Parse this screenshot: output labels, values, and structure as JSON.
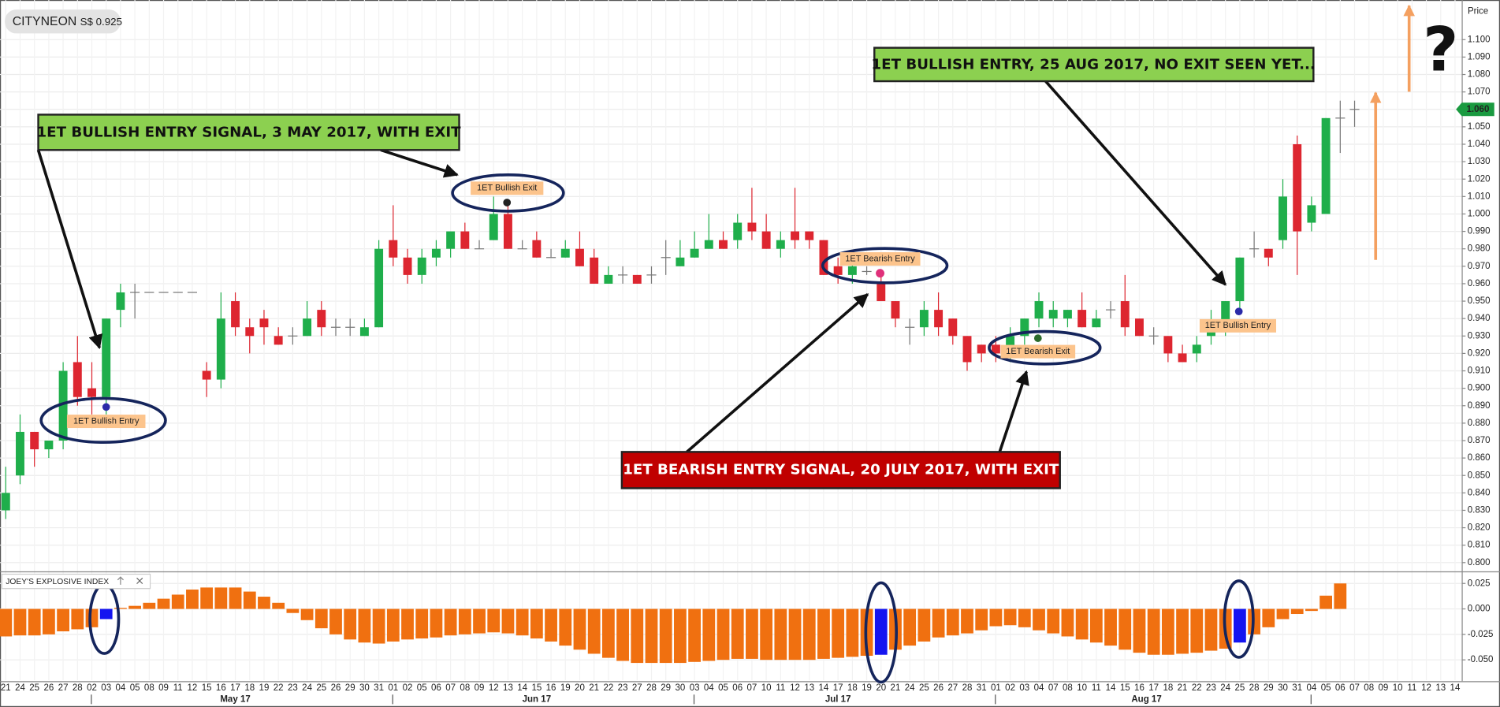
{
  "chart_data": [
    {
      "type": "candlestick",
      "title": "CITYNEON",
      "subtitle": "S$ 0.925",
      "y_axis_label": "Price",
      "price_marker": {
        "value": 1.06,
        "label": "1.060"
      },
      "up_color": "#1fae4b",
      "down_color": "#dd2630",
      "grid": true,
      "x": [
        "21",
        "24",
        "25",
        "26",
        "27",
        "28",
        "02",
        "03",
        "04",
        "05",
        "08",
        "09",
        "11",
        "12",
        "15",
        "16",
        "17",
        "18",
        "19",
        "22",
        "23",
        "24",
        "25",
        "26",
        "29",
        "30",
        "31",
        "01",
        "02",
        "05",
        "06",
        "07",
        "08",
        "09",
        "12",
        "13",
        "14",
        "15",
        "16",
        "19",
        "20",
        "21",
        "22",
        "23",
        "27",
        "28",
        "29",
        "30",
        "03",
        "04",
        "05",
        "06",
        "07",
        "10",
        "11",
        "12",
        "13",
        "14",
        "17",
        "18",
        "19",
        "20",
        "21",
        "24",
        "25",
        "26",
        "27",
        "28",
        "31",
        "01",
        "02",
        "03",
        "04",
        "07",
        "08",
        "10",
        "11",
        "14",
        "15",
        "16",
        "17",
        "18",
        "21",
        "22",
        "23",
        "24",
        "25",
        "28",
        "29",
        "30",
        "31",
        "04",
        "05",
        "06",
        "07",
        "08",
        "09",
        "10",
        "11",
        "12",
        "13",
        "14"
      ],
      "month_labels": [
        "May 17",
        "Jun 17",
        "Jul 17",
        "Aug 17"
      ],
      "open": [
        0.83,
        0.85,
        0.875,
        0.865,
        0.87,
        0.915,
        0.9,
        0.895,
        0.945,
        0.955,
        0.955,
        0.955,
        0.955,
        0.955,
        0.91,
        0.905,
        0.95,
        0.935,
        0.94,
        0.93,
        0.93,
        0.93,
        0.945,
        0.935,
        0.935,
        0.93,
        0.935,
        0.985,
        0.975,
        0.965,
        0.975,
        0.98,
        0.99,
        0.98,
        0.985,
        1.0,
        0.98,
        0.985,
        0.975,
        0.975,
        0.98,
        0.975,
        0.96,
        0.965,
        0.965,
        0.965,
        0.975,
        0.97,
        0.975,
        0.98,
        0.985,
        0.985,
        0.995,
        0.99,
        0.98,
        0.99,
        0.99,
        0.985,
        0.97,
        0.965,
        0.967,
        0.96,
        0.95,
        0.935,
        0.935,
        0.945,
        0.94,
        0.93,
        0.925,
        0.925,
        0.92,
        0.93,
        0.94,
        0.94,
        0.94,
        0.945,
        0.935,
        0.945,
        0.95,
        0.94,
        0.93,
        0.93,
        0.92,
        0.92,
        0.93,
        0.935,
        0.95,
        0.98,
        0.98,
        0.985,
        1.04,
        0.995,
        1.0,
        1.055,
        1.06,
        null,
        null,
        null,
        null,
        null,
        null,
        null
      ],
      "high": [
        0.855,
        0.885,
        0.875,
        0.87,
        0.915,
        0.93,
        0.915,
        0.94,
        0.96,
        0.96,
        0.955,
        0.955,
        0.955,
        0.955,
        0.915,
        0.955,
        0.955,
        0.94,
        0.945,
        0.935,
        0.935,
        0.95,
        0.95,
        0.94,
        0.94,
        0.94,
        0.985,
        1.005,
        0.98,
        0.98,
        0.985,
        0.99,
        0.995,
        0.985,
        1.01,
        1.005,
        0.985,
        0.99,
        0.98,
        0.985,
        0.99,
        0.98,
        0.97,
        0.97,
        0.965,
        0.97,
        0.985,
        0.985,
        0.99,
        1.0,
        0.99,
        1.0,
        1.015,
        1.0,
        0.99,
        1.015,
        0.99,
        0.985,
        0.975,
        0.975,
        0.97,
        0.965,
        0.95,
        0.94,
        0.95,
        0.955,
        0.94,
        0.93,
        0.925,
        0.93,
        0.935,
        0.94,
        0.955,
        0.95,
        0.945,
        0.955,
        0.945,
        0.95,
        0.965,
        0.94,
        0.935,
        0.93,
        0.925,
        0.93,
        0.945,
        0.95,
        0.975,
        0.99,
        0.98,
        1.02,
        1.045,
        1.01,
        1.055,
        1.065,
        1.065,
        null,
        null,
        null,
        null,
        null,
        null,
        null
      ],
      "low": [
        0.825,
        0.845,
        0.855,
        0.86,
        0.865,
        0.89,
        0.885,
        0.885,
        0.935,
        0.94,
        0.955,
        0.955,
        0.955,
        0.955,
        0.895,
        0.9,
        0.93,
        0.92,
        0.925,
        0.925,
        0.925,
        0.93,
        0.93,
        0.93,
        0.93,
        0.93,
        0.935,
        0.97,
        0.96,
        0.96,
        0.97,
        0.975,
        0.98,
        0.98,
        0.985,
        0.98,
        0.98,
        0.975,
        0.975,
        0.975,
        0.97,
        0.96,
        0.96,
        0.96,
        0.96,
        0.96,
        0.965,
        0.97,
        0.975,
        0.98,
        0.98,
        0.98,
        0.985,
        0.98,
        0.975,
        0.98,
        0.98,
        0.965,
        0.96,
        0.96,
        0.965,
        0.95,
        0.935,
        0.925,
        0.93,
        0.93,
        0.925,
        0.91,
        0.915,
        0.915,
        0.915,
        0.925,
        0.935,
        0.935,
        0.935,
        0.935,
        0.935,
        0.94,
        0.93,
        0.93,
        0.925,
        0.915,
        0.915,
        0.915,
        0.925,
        0.93,
        0.945,
        0.975,
        0.97,
        0.98,
        0.965,
        0.99,
        1.0,
        1.035,
        1.05,
        null,
        null,
        null,
        null,
        null,
        null,
        null
      ],
      "close": [
        0.84,
        0.875,
        0.865,
        0.87,
        0.91,
        0.895,
        0.895,
        0.94,
        0.955,
        0.955,
        0.955,
        0.955,
        0.955,
        0.955,
        0.905,
        0.94,
        0.935,
        0.93,
        0.935,
        0.925,
        0.93,
        0.94,
        0.935,
        0.935,
        0.935,
        0.935,
        0.98,
        0.975,
        0.965,
        0.975,
        0.98,
        0.99,
        0.98,
        0.98,
        1.0,
        0.98,
        0.98,
        0.975,
        0.975,
        0.98,
        0.97,
        0.96,
        0.965,
        0.965,
        0.96,
        0.965,
        0.975,
        0.975,
        0.98,
        0.985,
        0.98,
        0.995,
        0.99,
        0.98,
        0.985,
        0.985,
        0.985,
        0.965,
        0.965,
        0.97,
        0.967,
        0.95,
        0.94,
        0.935,
        0.945,
        0.935,
        0.93,
        0.915,
        0.92,
        0.92,
        0.93,
        0.94,
        0.95,
        0.945,
        0.945,
        0.935,
        0.94,
        0.945,
        0.935,
        0.93,
        0.93,
        0.92,
        0.915,
        0.925,
        0.935,
        0.95,
        0.975,
        0.98,
        0.975,
        1.01,
        0.99,
        1.005,
        1.055,
        1.055,
        1.06,
        null,
        null,
        null,
        null,
        null,
        null,
        null
      ],
      "ylim": [
        0.795,
        1.12
      ],
      "yticks": [
        {
          "value": 0.8,
          "label": "0.800"
        },
        {
          "value": 0.81,
          "label": "0.810"
        },
        {
          "value": 0.82,
          "label": "0.820"
        },
        {
          "value": 0.83,
          "label": "0.830"
        },
        {
          "value": 0.84,
          "label": "0.840"
        },
        {
          "value": 0.85,
          "label": "0.850"
        },
        {
          "value": 0.86,
          "label": "0.860"
        },
        {
          "value": 0.87,
          "label": "0.870"
        },
        {
          "value": 0.88,
          "label": "0.880"
        },
        {
          "value": 0.89,
          "label": "0.890"
        },
        {
          "value": 0.9,
          "label": "0.900"
        },
        {
          "value": 0.91,
          "label": "0.910"
        },
        {
          "value": 0.92,
          "label": "0.920"
        },
        {
          "value": 0.93,
          "label": "0.930"
        },
        {
          "value": 0.94,
          "label": "0.940"
        },
        {
          "value": 0.95,
          "label": "0.950"
        },
        {
          "value": 0.96,
          "label": "0.960"
        },
        {
          "value": 0.97,
          "label": "0.970"
        },
        {
          "value": 0.98,
          "label": "0.980"
        },
        {
          "value": 0.99,
          "label": "0.990"
        },
        {
          "value": 1.0,
          "label": "1.000"
        },
        {
          "value": 1.01,
          "label": "1.010"
        },
        {
          "value": 1.02,
          "label": "1.020"
        },
        {
          "value": 1.03,
          "label": "1.030"
        },
        {
          "value": 1.04,
          "label": "1.040"
        },
        {
          "value": 1.05,
          "label": "1.050"
        },
        {
          "value": 1.06,
          "label": "1.060"
        },
        {
          "value": 1.07,
          "label": "1.070"
        },
        {
          "value": 1.08,
          "label": "1.080"
        },
        {
          "value": 1.09,
          "label": "1.090"
        },
        {
          "value": 1.1,
          "label": "1.100"
        }
      ],
      "annotations": {
        "callout_1": "1ET BULLISH ENTRY SIGNAL, 3 MAY 2017, WITH EXIT",
        "callout_2": "1ET BULLISH ENTRY, 25 AUG 2017, NO EXIT SEEN YET...",
        "callout_3": "1ET BEARISH ENTRY SIGNAL, 20 JULY 2017, WITH EXIT",
        "signal_1": "1ET Bullish Entry",
        "signal_2": "1ET Bullish Exit",
        "signal_3": "1ET Bearish Entry",
        "signal_4": "1ET Bearish Exit",
        "signal_5": "1ET Bullish Entry",
        "question": "?"
      }
    },
    {
      "type": "bar",
      "title": "JOEY'S EXPLOSIVE INDEX",
      "series": [
        {
          "color": "#f07010",
          "values": [
            -0.027,
            -0.026,
            -0.026,
            -0.025,
            -0.022,
            -0.02,
            -0.018,
            null,
            0.001,
            0.003,
            0.006,
            0.01,
            0.014,
            0.019,
            0.021,
            0.021,
            0.021,
            0.017,
            0.012,
            0.006,
            -0.004,
            -0.011,
            -0.019,
            -0.025,
            -0.03,
            -0.033,
            -0.034,
            -0.032,
            -0.03,
            -0.029,
            -0.028,
            -0.026,
            -0.025,
            -0.024,
            -0.023,
            -0.024,
            -0.026,
            -0.029,
            -0.032,
            -0.036,
            -0.04,
            -0.044,
            -0.048,
            -0.051,
            -0.053,
            -0.053,
            -0.053,
            -0.053,
            -0.052,
            -0.051,
            -0.05,
            -0.049,
            -0.049,
            -0.05,
            -0.05,
            -0.05,
            -0.05,
            -0.049,
            -0.048,
            -0.047,
            -0.046,
            null,
            -0.04,
            -0.036,
            -0.032,
            -0.028,
            -0.026,
            -0.024,
            -0.021,
            -0.017,
            -0.016,
            -0.018,
            -0.021,
            -0.024,
            -0.027,
            -0.03,
            -0.033,
            -0.036,
            -0.04,
            -0.043,
            -0.045,
            -0.045,
            -0.044,
            -0.043,
            -0.041,
            -0.039,
            null,
            -0.025,
            -0.018,
            -0.01,
            -0.005,
            -0.002,
            0.013,
            0.025,
            null,
            null,
            null,
            null,
            null,
            null,
            null,
            null
          ]
        },
        {
          "color": "#1414f0",
          "values": [
            null,
            null,
            null,
            null,
            null,
            null,
            null,
            -0.01,
            null,
            null,
            null,
            null,
            null,
            null,
            null,
            null,
            null,
            null,
            null,
            null,
            null,
            null,
            null,
            null,
            null,
            null,
            null,
            null,
            null,
            null,
            null,
            null,
            null,
            null,
            null,
            null,
            null,
            null,
            null,
            null,
            null,
            null,
            null,
            null,
            null,
            null,
            null,
            null,
            null,
            null,
            null,
            null,
            null,
            null,
            null,
            null,
            null,
            null,
            null,
            null,
            null,
            -0.045,
            null,
            null,
            null,
            null,
            null,
            null,
            null,
            null,
            null,
            null,
            null,
            null,
            null,
            null,
            null,
            null,
            null,
            null,
            null,
            null,
            null,
            null,
            null,
            null,
            -0.033,
            null,
            null,
            null,
            null,
            null,
            null,
            null,
            null,
            null,
            null,
            null,
            null,
            null,
            null,
            null
          ]
        }
      ],
      "ylim": [
        -0.07,
        0.035
      ],
      "yticks": [
        0.025,
        {
          "value": 0,
          "label": "0.000"
        },
        -0.025,
        {
          "value": -0.05,
          "label": "-0.050"
        }
      ],
      "grid": true
    }
  ]
}
